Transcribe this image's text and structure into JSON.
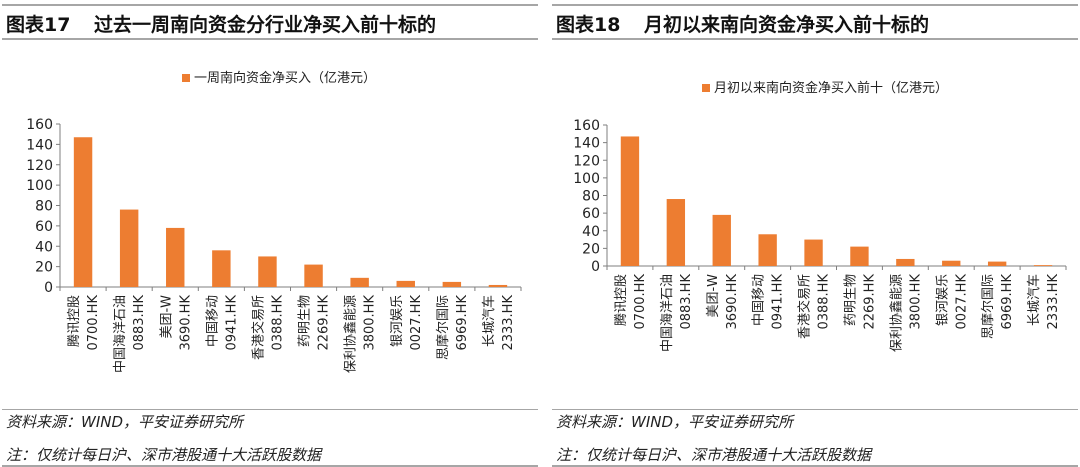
{
  "colors": {
    "bar": "#ed7d31",
    "axis": "#7f7f7f",
    "rule": "#a6a6a6"
  },
  "panels": [
    {
      "figure_number": "图表17",
      "title": "过去一周南向资金分行业净买入前十标的",
      "source": "资料来源：WIND，平安证券研究所",
      "note": "注：仅统计每日沪、深市港股通十大活跃股数据"
    },
    {
      "figure_number": "图表18",
      "title": "月初以来南向资金净买入前十标的",
      "source": "资料来源：WIND，平安证券研究所",
      "note": "注：仅统计每日沪、深市港股通十大活跃股数据"
    }
  ],
  "chart_data": [
    {
      "type": "bar",
      "legend": "一周南向资金净买入（亿港元）",
      "legend_position": "top",
      "categories": [
        [
          "腾讯控股",
          "0700.HK"
        ],
        [
          "中国海洋石油",
          "0883.HK"
        ],
        [
          "美团-W",
          "3690.HK"
        ],
        [
          "中国移动",
          "0941.HK"
        ],
        [
          "香港交易所",
          "0388.HK"
        ],
        [
          "药明生物",
          "2269.HK"
        ],
        [
          "保利协鑫能源",
          "3800.HK"
        ],
        [
          "银河娱乐",
          "0027.HK"
        ],
        [
          "思摩尔国际",
          "6969.HK"
        ],
        [
          "长城汽车",
          "2333.HK"
        ]
      ],
      "values": [
        147,
        76,
        58,
        36,
        30,
        22,
        9,
        6,
        5,
        2
      ],
      "yticks": [
        "0",
        "20",
        "40",
        "60",
        "80",
        "100",
        "120",
        "140",
        "160"
      ],
      "ylim": [
        0,
        160
      ],
      "grid": false
    },
    {
      "type": "bar",
      "legend": "月初以来南向资金净买入前十（亿港元）",
      "legend_position": "top",
      "categories": [
        [
          "腾讯控股",
          "0700.HK"
        ],
        [
          "中国海洋石油",
          "0883.HK"
        ],
        [
          "美团-W",
          "3690.HK"
        ],
        [
          "中国移动",
          "0941.HK"
        ],
        [
          "香港交易所",
          "0388.HK"
        ],
        [
          "药明生物",
          "2269.HK"
        ],
        [
          "保利协鑫能源",
          "3800.HK"
        ],
        [
          "银河娱乐",
          "0027.HK"
        ],
        [
          "思摩尔国际",
          "6969.HK"
        ],
        [
          "长城汽车",
          "2333.HK"
        ]
      ],
      "values": [
        147,
        76,
        58,
        36,
        30,
        22,
        8,
        6,
        5,
        1
      ],
      "yticks": [
        "0",
        "20",
        "40",
        "60",
        "80",
        "100",
        "120",
        "140",
        "160"
      ],
      "ylim": [
        0,
        160
      ],
      "grid": false
    }
  ]
}
